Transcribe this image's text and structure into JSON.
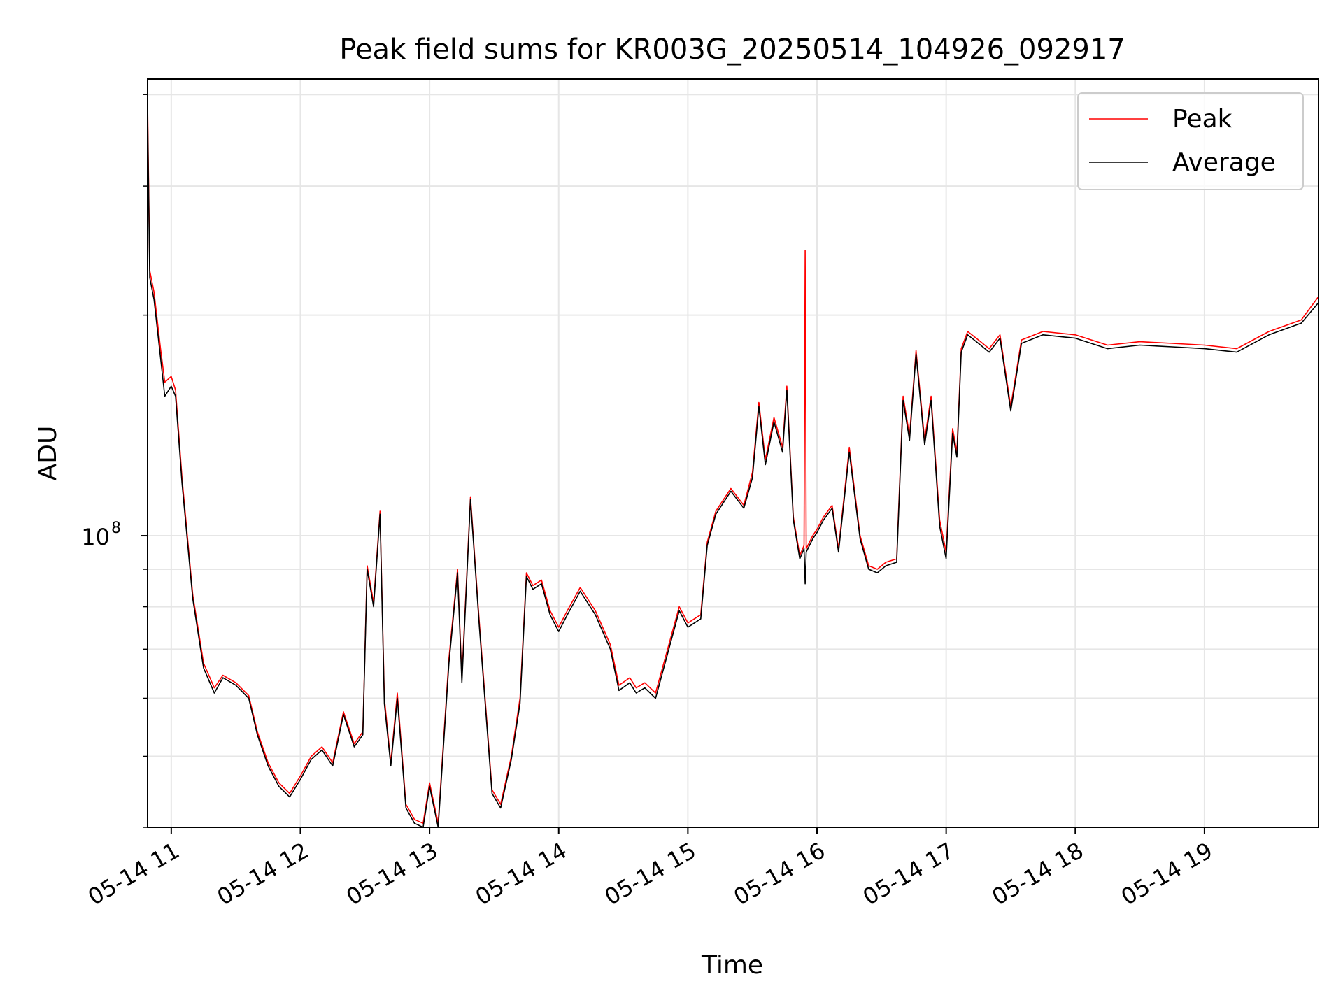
{
  "chart_data": {
    "type": "line",
    "title": "Peak field sums for KR003G_20250514_104926_092917",
    "xlabel": "Time",
    "ylabel": "ADU",
    "x_ticks": [
      "05-14 11",
      "05-14 12",
      "05-14 13",
      "05-14 14",
      "05-14 15",
      "05-14 16",
      "05-14 17",
      "05-14 18",
      "05-14 19"
    ],
    "y_ticks": [
      {
        "base": "10",
        "exp": "8",
        "value": 100000000
      }
    ],
    "y_scale": "log",
    "xlim": [
      "2025-05-14 10:49",
      "2025-05-14 19:53"
    ],
    "ylim": [
      40000000,
      420000000
    ],
    "grid": true,
    "legend_position": "top-right",
    "colors": {
      "peak": "#ff0000",
      "average": "#000000"
    },
    "series": [
      {
        "name": "Peak",
        "color": "#ff0000",
        "points": [
          [
            "2025-05-14 10:49",
            390000000.0
          ],
          [
            "2025-05-14 10:50",
            230000000.0
          ],
          [
            "2025-05-14 10:52",
            215000000.0
          ],
          [
            "2025-05-14 10:55",
            180000000.0
          ],
          [
            "2025-05-14 10:57",
            162000000.0
          ],
          [
            "2025-05-14 11:00",
            165000000.0
          ],
          [
            "2025-05-14 11:02",
            158000000.0
          ],
          [
            "2025-05-14 11:05",
            120000000.0
          ],
          [
            "2025-05-14 11:10",
            83000000.0
          ],
          [
            "2025-05-14 11:15",
            67000000.0
          ],
          [
            "2025-05-14 11:20",
            62000000.0
          ],
          [
            "2025-05-14 11:24",
            64500000.0
          ],
          [
            "2025-05-14 11:30",
            63000000.0
          ],
          [
            "2025-05-14 11:36",
            60500000.0
          ],
          [
            "2025-05-14 11:40",
            54000000.0
          ],
          [
            "2025-05-14 11:45",
            49000000.0
          ],
          [
            "2025-05-14 11:50",
            46000000.0
          ],
          [
            "2025-05-14 11:55",
            44500000.0
          ],
          [
            "2025-05-14 12:00",
            47000000.0
          ],
          [
            "2025-05-14 12:05",
            50000000.0
          ],
          [
            "2025-05-14 12:10",
            51500000.0
          ],
          [
            "2025-05-14 12:15",
            49000000.0
          ],
          [
            "2025-05-14 12:20",
            57500000.0
          ],
          [
            "2025-05-14 12:25",
            52000000.0
          ],
          [
            "2025-05-14 12:29",
            54000000.0
          ],
          [
            "2025-05-14 12:31",
            91000000.0
          ],
          [
            "2025-05-14 12:34",
            81000000.0
          ],
          [
            "2025-05-14 12:37",
            108000000.0
          ],
          [
            "2025-05-14 12:39",
            60000000.0
          ],
          [
            "2025-05-14 12:42",
            49000000.0
          ],
          [
            "2025-05-14 12:45",
            61000000.0
          ],
          [
            "2025-05-14 12:49",
            43000000.0
          ],
          [
            "2025-05-14 12:53",
            41000000.0
          ],
          [
            "2025-05-14 12:57",
            40500000.0
          ],
          [
            "2025-05-14 13:00",
            46000000.0
          ],
          [
            "2025-05-14 13:04",
            40500000.0
          ],
          [
            "2025-05-14 13:09",
            68000000.0
          ],
          [
            "2025-05-14 13:13",
            90000000.0
          ],
          [
            "2025-05-14 13:15",
            64000000.0
          ],
          [
            "2025-05-14 13:19",
            113000000.0
          ],
          [
            "2025-05-14 13:23",
            77000000.0
          ],
          [
            "2025-05-14 13:29",
            45000000.0
          ],
          [
            "2025-05-14 13:33",
            43000000.0
          ],
          [
            "2025-05-14 13:38",
            50000000.0
          ],
          [
            "2025-05-14 13:42",
            60000000.0
          ],
          [
            "2025-05-14 13:45",
            89000000.0
          ],
          [
            "2025-05-14 13:48",
            85500000.0
          ],
          [
            "2025-05-14 13:52",
            87000000.0
          ],
          [
            "2025-05-14 13:56",
            79000000.0
          ],
          [
            "2025-05-14 14:00",
            75000000.0
          ],
          [
            "2025-05-14 14:04",
            79000000.0
          ],
          [
            "2025-05-14 14:10",
            85000000.0
          ],
          [
            "2025-05-14 14:17",
            79000000.0
          ],
          [
            "2025-05-14 14:24",
            71000000.0
          ],
          [
            "2025-05-14 14:28",
            62500000.0
          ],
          [
            "2025-05-14 14:33",
            64000000.0
          ],
          [
            "2025-05-14 14:36",
            62000000.0
          ],
          [
            "2025-05-14 14:40",
            63000000.0
          ],
          [
            "2025-05-14 14:45",
            61000000.0
          ],
          [
            "2025-05-14 14:50",
            69000000.0
          ],
          [
            "2025-05-14 14:56",
            80000000.0
          ],
          [
            "2025-05-14 15:00",
            76000000.0
          ],
          [
            "2025-05-14 15:06",
            78000000.0
          ],
          [
            "2025-05-14 15:09",
            98000000.0
          ],
          [
            "2025-05-14 15:13",
            108000000.0
          ],
          [
            "2025-05-14 15:20",
            116000000.0
          ],
          [
            "2025-05-14 15:26",
            110000000.0
          ],
          [
            "2025-05-14 15:30",
            122000000.0
          ],
          [
            "2025-05-14 15:33",
            152000000.0
          ],
          [
            "2025-05-14 15:36",
            127000000.0
          ],
          [
            "2025-05-14 15:40",
            145000000.0
          ],
          [
            "2025-05-14 15:44",
            132000000.0
          ],
          [
            "2025-05-14 15:46",
            160000000.0
          ],
          [
            "2025-05-14 15:49",
            106000000.0
          ],
          [
            "2025-05-14 15:52",
            94000000.0
          ],
          [
            "2025-05-14 15:54",
            97000000.0
          ],
          [
            "2025-05-14 15:54.5",
            245000000.0
          ],
          [
            "2025-05-14 15:55",
            96000000.0
          ],
          [
            "2025-05-14 15:58",
            100000000.0
          ],
          [
            "2025-05-14 16:00",
            102000000.0
          ],
          [
            "2025-05-14 16:03",
            106000000.0
          ],
          [
            "2025-05-14 16:07",
            110000000.0
          ],
          [
            "2025-05-14 16:10",
            96000000.0
          ],
          [
            "2025-05-14 16:15",
            132000000.0
          ],
          [
            "2025-05-14 16:20",
            100000000.0
          ],
          [
            "2025-05-14 16:24",
            91000000.0
          ],
          [
            "2025-05-14 16:28",
            90000000.0
          ],
          [
            "2025-05-14 16:32",
            92000000.0
          ],
          [
            "2025-05-14 16:37",
            93000000.0
          ],
          [
            "2025-05-14 16:40",
            155000000.0
          ],
          [
            "2025-05-14 16:43",
            137000000.0
          ],
          [
            "2025-05-14 16:46",
            179000000.0
          ],
          [
            "2025-05-14 16:50",
            135000000.0
          ],
          [
            "2025-05-14 16:53",
            155000000.0
          ],
          [
            "2025-05-14 16:57",
            105000000.0
          ],
          [
            "2025-05-14 17:00",
            95000000.0
          ],
          [
            "2025-05-14 17:03",
            140000000.0
          ],
          [
            "2025-05-14 17:05",
            130000000.0
          ],
          [
            "2025-05-14 17:07",
            180000000.0
          ],
          [
            "2025-05-14 17:10",
            190000000.0
          ],
          [
            "2025-05-14 17:15",
            185000000.0
          ],
          [
            "2025-05-14 17:20",
            180000000.0
          ],
          [
            "2025-05-14 17:25",
            188000000.0
          ],
          [
            "2025-05-14 17:30",
            150000000.0
          ],
          [
            "2025-05-14 17:35",
            185000000.0
          ],
          [
            "2025-05-14 17:45",
            190000000.0
          ],
          [
            "2025-05-14 18:00",
            188000000.0
          ],
          [
            "2025-05-14 18:15",
            182000000.0
          ],
          [
            "2025-05-14 18:30",
            184000000.0
          ],
          [
            "2025-05-14 18:45",
            183000000.0
          ],
          [
            "2025-05-14 19:00",
            182000000.0
          ],
          [
            "2025-05-14 19:15",
            180000000.0
          ],
          [
            "2025-05-14 19:30",
            190000000.0
          ],
          [
            "2025-05-14 19:45",
            197000000.0
          ],
          [
            "2025-05-14 19:53",
            212000000.0
          ]
        ]
      },
      {
        "name": "Average",
        "color": "#000000",
        "points": [
          [
            "2025-05-14 10:49",
            375000000.0
          ],
          [
            "2025-05-14 10:50",
            225000000.0
          ],
          [
            "2025-05-14 10:52",
            210000000.0
          ],
          [
            "2025-05-14 10:55",
            175000000.0
          ],
          [
            "2025-05-14 10:57",
            155000000.0
          ],
          [
            "2025-05-14 11:00",
            160000000.0
          ],
          [
            "2025-05-14 11:02",
            155000000.0
          ],
          [
            "2025-05-14 11:05",
            118000000.0
          ],
          [
            "2025-05-14 11:10",
            82000000.0
          ],
          [
            "2025-05-14 11:15",
            66000000.0
          ],
          [
            "2025-05-14 11:20",
            61000000.0
          ],
          [
            "2025-05-14 11:24",
            64000000.0
          ],
          [
            "2025-05-14 11:30",
            62500000.0
          ],
          [
            "2025-05-14 11:36",
            60000000.0
          ],
          [
            "2025-05-14 11:40",
            53500000.0
          ],
          [
            "2025-05-14 11:45",
            48500000.0
          ],
          [
            "2025-05-14 11:50",
            45500000.0
          ],
          [
            "2025-05-14 11:55",
            44000000.0
          ],
          [
            "2025-05-14 12:00",
            46500000.0
          ],
          [
            "2025-05-14 12:05",
            49500000.0
          ],
          [
            "2025-05-14 12:10",
            51000000.0
          ],
          [
            "2025-05-14 12:15",
            48500000.0
          ],
          [
            "2025-05-14 12:20",
            57000000.0
          ],
          [
            "2025-05-14 12:25",
            51500000.0
          ],
          [
            "2025-05-14 12:29",
            53500000.0
          ],
          [
            "2025-05-14 12:31",
            90000000.0
          ],
          [
            "2025-05-14 12:34",
            80000000.0
          ],
          [
            "2025-05-14 12:37",
            107000000.0
          ],
          [
            "2025-05-14 12:39",
            59000000.0
          ],
          [
            "2025-05-14 12:42",
            48500000.0
          ],
          [
            "2025-05-14 12:45",
            60000000.0
          ],
          [
            "2025-05-14 12:49",
            42500000.0
          ],
          [
            "2025-05-14 12:53",
            40500000.0
          ],
          [
            "2025-05-14 12:57",
            40000000.0
          ],
          [
            "2025-05-14 13:00",
            45500000.0
          ],
          [
            "2025-05-14 13:04",
            40000000.0
          ],
          [
            "2025-05-14 13:09",
            67000000.0
          ],
          [
            "2025-05-14 13:13",
            89000000.0
          ],
          [
            "2025-05-14 13:15",
            63000000.0
          ],
          [
            "2025-05-14 13:19",
            112000000.0
          ],
          [
            "2025-05-14 13:23",
            76000000.0
          ],
          [
            "2025-05-14 13:29",
            44500000.0
          ],
          [
            "2025-05-14 13:33",
            42500000.0
          ],
          [
            "2025-05-14 13:38",
            49500000.0
          ],
          [
            "2025-05-14 13:42",
            59000000.0
          ],
          [
            "2025-05-14 13:45",
            88000000.0
          ],
          [
            "2025-05-14 13:48",
            84500000.0
          ],
          [
            "2025-05-14 13:52",
            86000000.0
          ],
          [
            "2025-05-14 13:56",
            78000000.0
          ],
          [
            "2025-05-14 14:00",
            74000000.0
          ],
          [
            "2025-05-14 14:04",
            78000000.0
          ],
          [
            "2025-05-14 14:10",
            84000000.0
          ],
          [
            "2025-05-14 14:17",
            78000000.0
          ],
          [
            "2025-05-14 14:24",
            70000000.0
          ],
          [
            "2025-05-14 14:28",
            61500000.0
          ],
          [
            "2025-05-14 14:33",
            63000000.0
          ],
          [
            "2025-05-14 14:36",
            61000000.0
          ],
          [
            "2025-05-14 14:40",
            62000000.0
          ],
          [
            "2025-05-14 14:45",
            60000000.0
          ],
          [
            "2025-05-14 14:50",
            68000000.0
          ],
          [
            "2025-05-14 14:56",
            79000000.0
          ],
          [
            "2025-05-14 15:00",
            75000000.0
          ],
          [
            "2025-05-14 15:06",
            77000000.0
          ],
          [
            "2025-05-14 15:09",
            97000000.0
          ],
          [
            "2025-05-14 15:13",
            107000000.0
          ],
          [
            "2025-05-14 15:20",
            115000000.0
          ],
          [
            "2025-05-14 15:26",
            109000000.0
          ],
          [
            "2025-05-14 15:30",
            120000000.0
          ],
          [
            "2025-05-14 15:33",
            150000000.0
          ],
          [
            "2025-05-14 15:36",
            125000000.0
          ],
          [
            "2025-05-14 15:40",
            143000000.0
          ],
          [
            "2025-05-14 15:44",
            130000000.0
          ],
          [
            "2025-05-14 15:46",
            158000000.0
          ],
          [
            "2025-05-14 15:49",
            105000000.0
          ],
          [
            "2025-05-14 15:52",
            93000000.0
          ],
          [
            "2025-05-14 15:54",
            96000000.0
          ],
          [
            "2025-05-14 15:54.5",
            86000000.0
          ],
          [
            "2025-05-14 15:55",
            95000000.0
          ],
          [
            "2025-05-14 15:58",
            99000000.0
          ],
          [
            "2025-05-14 16:00",
            101000000.0
          ],
          [
            "2025-05-14 16:03",
            105000000.0
          ],
          [
            "2025-05-14 16:07",
            109000000.0
          ],
          [
            "2025-05-14 16:10",
            95000000.0
          ],
          [
            "2025-05-14 16:15",
            130000000.0
          ],
          [
            "2025-05-14 16:20",
            99000000.0
          ],
          [
            "2025-05-14 16:24",
            90000000.0
          ],
          [
            "2025-05-14 16:28",
            89000000.0
          ],
          [
            "2025-05-14 16:32",
            91000000.0
          ],
          [
            "2025-05-14 16:37",
            92000000.0
          ],
          [
            "2025-05-14 16:40",
            153000000.0
          ],
          [
            "2025-05-14 16:43",
            135000000.0
          ],
          [
            "2025-05-14 16:46",
            177000000.0
          ],
          [
            "2025-05-14 16:50",
            133000000.0
          ],
          [
            "2025-05-14 16:53",
            153000000.0
          ],
          [
            "2025-05-14 16:57",
            103000000.0
          ],
          [
            "2025-05-14 17:00",
            93000000.0
          ],
          [
            "2025-05-14 17:03",
            138000000.0
          ],
          [
            "2025-05-14 17:05",
            128000000.0
          ],
          [
            "2025-05-14 17:07",
            178000000.0
          ],
          [
            "2025-05-14 17:10",
            188000000.0
          ],
          [
            "2025-05-14 17:15",
            183000000.0
          ],
          [
            "2025-05-14 17:20",
            178000000.0
          ],
          [
            "2025-05-14 17:25",
            186000000.0
          ],
          [
            "2025-05-14 17:30",
            148000000.0
          ],
          [
            "2025-05-14 17:35",
            183000000.0
          ],
          [
            "2025-05-14 17:45",
            188000000.0
          ],
          [
            "2025-05-14 18:00",
            186000000.0
          ],
          [
            "2025-05-14 18:15",
            180000000.0
          ],
          [
            "2025-05-14 18:30",
            182000000.0
          ],
          [
            "2025-05-14 18:45",
            181000000.0
          ],
          [
            "2025-05-14 19:00",
            180000000.0
          ],
          [
            "2025-05-14 19:15",
            178000000.0
          ],
          [
            "2025-05-14 19:30",
            188000000.0
          ],
          [
            "2025-05-14 19:45",
            195000000.0
          ],
          [
            "2025-05-14 19:53",
            208000000.0
          ]
        ]
      }
    ]
  }
}
